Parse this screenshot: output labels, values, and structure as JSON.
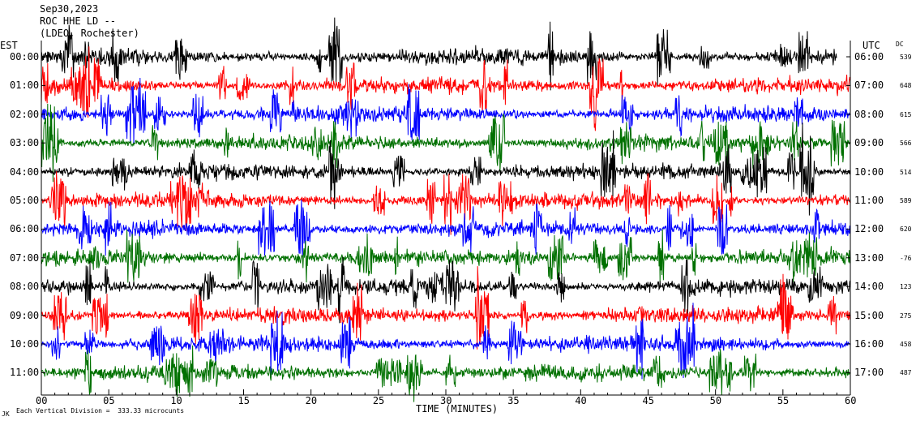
{
  "header": {
    "date": "Sep30,2023",
    "station": "ROC HHE LD --",
    "network": "(LDEO, Rochester)"
  },
  "left_axis_label": "EST",
  "right_axis_label": "UTC",
  "dc_label": "DC",
  "xlabel": "TIME (MINUTES)",
  "footer": {
    "corner_mark": "JK",
    "scale_note": "Each Vertical Division =  333.33 microcunts"
  },
  "colors": {
    "background": "#ffffff",
    "trace_cycle": [
      "#000000",
      "#ff0000",
      "#0000ff",
      "#007000"
    ]
  },
  "chart_data": {
    "type": "line",
    "title": "Sep30,2023 ROC HHE LD -- (LDEO, Rochester)",
    "xlabel": "TIME (MINUTES)",
    "xlim": [
      0,
      60
    ],
    "x_ticks": [
      "00",
      "05",
      "10",
      "15",
      "20",
      "25",
      "30",
      "35",
      "40",
      "45",
      "50",
      "55",
      "60"
    ],
    "rows": [
      {
        "est": "00:00",
        "utc": "06:00",
        "dc": "539",
        "color": "#000000",
        "end_minute": 59
      },
      {
        "est": "01:00",
        "utc": "07:00",
        "dc": "648",
        "color": "#ff0000",
        "end_minute": 60
      },
      {
        "est": "02:00",
        "utc": "08:00",
        "dc": "615",
        "color": "#0000ff",
        "end_minute": 60
      },
      {
        "est": "03:00",
        "utc": "09:00",
        "dc": "566",
        "color": "#007000",
        "end_minute": 60
      },
      {
        "est": "04:00",
        "utc": "10:00",
        "dc": "514",
        "color": "#000000",
        "end_minute": 60
      },
      {
        "est": "05:00",
        "utc": "11:00",
        "dc": "589",
        "color": "#ff0000",
        "end_minute": 60
      },
      {
        "est": "06:00",
        "utc": "12:00",
        "dc": "620",
        "color": "#0000ff",
        "end_minute": 60
      },
      {
        "est": "07:00",
        "utc": "13:00",
        "dc": "-76",
        "color": "#007000",
        "end_minute": 60
      },
      {
        "est": "08:00",
        "utc": "14:00",
        "dc": "123",
        "color": "#000000",
        "end_minute": 60
      },
      {
        "est": "09:00",
        "utc": "15:00",
        "dc": "275",
        "color": "#ff0000",
        "end_minute": 60
      },
      {
        "est": "10:00",
        "utc": "16:00",
        "dc": "458",
        "color": "#0000ff",
        "end_minute": 60
      },
      {
        "est": "11:00",
        "utc": "17:00",
        "dc": "487",
        "color": "#007000",
        "end_minute": 60
      }
    ],
    "grid": false,
    "legend": "none"
  }
}
